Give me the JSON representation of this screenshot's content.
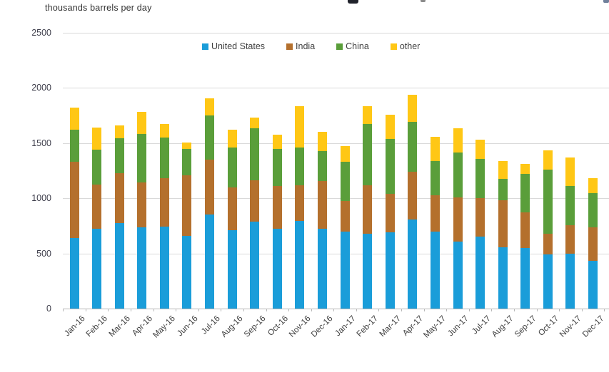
{
  "header": {
    "unit_label": "thousands barrels per day",
    "cropped_title_visible": false
  },
  "chart_data": {
    "type": "bar",
    "stacked": true,
    "title": "",
    "ylabel": "thousands barrels per day",
    "xlabel": "",
    "ylim": [
      0,
      2500
    ],
    "yticks": [
      0,
      500,
      1000,
      1500,
      2000,
      2500
    ],
    "grid": true,
    "legend_position": "top-center",
    "categories": [
      "Jan-16",
      "Feb-16",
      "Mar-16",
      "Apr-16",
      "May-16",
      "Jun-16",
      "Jul-16",
      "Aug-16",
      "Sep-16",
      "Oct-16",
      "Nov-16",
      "Dec-16",
      "Jan-17",
      "Feb-17",
      "Mar-17",
      "Apr-17",
      "May-17",
      "Jun-17",
      "Jul-17",
      "Aug-17",
      "Sep-17",
      "Oct-17",
      "Nov-17",
      "Dec-17"
    ],
    "series": [
      {
        "name": "United States",
        "color": "#1a9dd9",
        "values": [
          640,
          725,
          775,
          735,
          745,
          660,
          855,
          710,
          785,
          725,
          795,
          725,
          695,
          680,
          690,
          810,
          700,
          610,
          655,
          555,
          550,
          490,
          500,
          430
        ]
      },
      {
        "name": "India",
        "color": "#b4702d",
        "values": [
          690,
          400,
          450,
          410,
          440,
          550,
          495,
          390,
          375,
          385,
          325,
          430,
          280,
          440,
          350,
          430,
          325,
          395,
          345,
          425,
          320,
          185,
          255,
          305
        ]
      },
      {
        "name": "China",
        "color": "#5a9e3a",
        "values": [
          290,
          315,
          320,
          440,
          365,
          240,
          400,
          360,
          475,
          335,
          340,
          270,
          355,
          555,
          500,
          450,
          315,
          410,
          355,
          195,
          350,
          585,
          355,
          310
        ]
      },
      {
        "name": "other",
        "color": "#ffc715",
        "values": [
          200,
          200,
          115,
          195,
          120,
          55,
          155,
          160,
          95,
          130,
          375,
          175,
          140,
          160,
          215,
          250,
          215,
          220,
          175,
          160,
          90,
          175,
          260,
          140
        ]
      }
    ]
  },
  "axis_text_color": "#3f3f4c",
  "gridline_color": "#d9d9d9"
}
